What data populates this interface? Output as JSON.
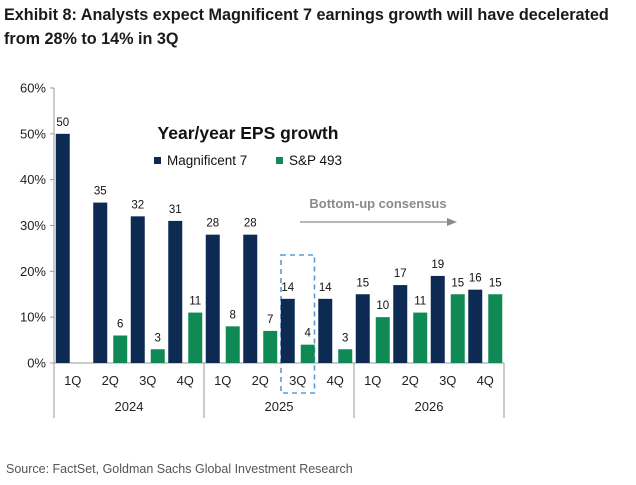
{
  "header": {
    "title": "Exhibit 8: Analysts expect Magnificent 7 earnings growth will have decelerated from 28% to 14% in 3Q"
  },
  "footer": {
    "source": "Source: FactSet, Goldman Sachs Global Investment Research"
  },
  "colors": {
    "mag7": "#0d2b52",
    "sp493": "#0f8a55",
    "highlight": "#5b9bd5",
    "annotation": "#8a8a8a"
  },
  "chart_data": {
    "type": "bar",
    "title": "Year/year EPS growth",
    "xlabel": "",
    "ylabel": "",
    "ylim": [
      0,
      60
    ],
    "y_ticks": [
      "0%",
      "10%",
      "20%",
      "30%",
      "40%",
      "50%",
      "60%"
    ],
    "y_tick_values": [
      0,
      10,
      20,
      30,
      40,
      50,
      60
    ],
    "categories": [
      "1Q",
      "2Q",
      "3Q",
      "4Q",
      "1Q",
      "2Q",
      "3Q",
      "4Q",
      "1Q",
      "2Q",
      "3Q",
      "4Q"
    ],
    "groups": [
      {
        "label": "2024",
        "count": 4
      },
      {
        "label": "2025",
        "count": 4
      },
      {
        "label": "2026",
        "count": 4
      }
    ],
    "series": [
      {
        "name": "Magnificent 7",
        "values": [
          50,
          35,
          32,
          31,
          28,
          28,
          14,
          14,
          15,
          17,
          19,
          16
        ],
        "labels": [
          "50",
          "35",
          "32",
          "31",
          "28",
          "28",
          "14",
          "14",
          "15",
          "17",
          "19",
          "16"
        ]
      },
      {
        "name": "S&P 493",
        "values": [
          null,
          6,
          3,
          11,
          8,
          7,
          4,
          3,
          10,
          11,
          15,
          15
        ],
        "labels": [
          null,
          "6",
          "3",
          "11",
          "8",
          "7",
          "4",
          "3",
          "10",
          "11",
          "15",
          "15"
        ]
      }
    ],
    "highlighted_category_index": 6,
    "annotation": "Bottom-up consensus",
    "legend": "top-center",
    "grid": false
  }
}
